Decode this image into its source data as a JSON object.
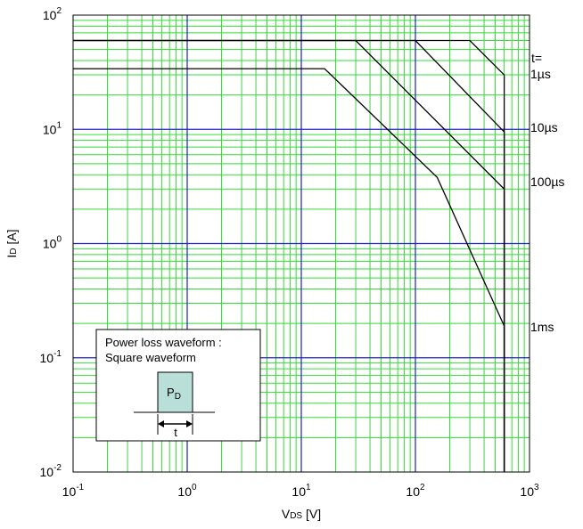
{
  "chart_data": {
    "type": "line",
    "title": "",
    "x_scale": "log",
    "y_scale": "log",
    "xlim": [
      0.1,
      1000
    ],
    "ylim": [
      0.01,
      100
    ],
    "x_ticks": [
      {
        "base": "10",
        "exp": "-1"
      },
      {
        "base": "10",
        "exp": "0"
      },
      {
        "base": "10",
        "exp": "1"
      },
      {
        "base": "10",
        "exp": "2"
      },
      {
        "base": "10",
        "exp": "3"
      }
    ],
    "y_ticks": [
      {
        "base": "10",
        "exp": "-2"
      },
      {
        "base": "10",
        "exp": "-1"
      },
      {
        "base": "10",
        "exp": "0"
      },
      {
        "base": "10",
        "exp": "1"
      },
      {
        "base": "10",
        "exp": "2"
      }
    ],
    "xlabel": {
      "main": "V",
      "sub": "DS",
      "unit": " [V]"
    },
    "ylabel": {
      "main": "I",
      "sub": "D",
      "unit": " [A]"
    },
    "grid": true,
    "series_header": "t=",
    "series": [
      {
        "name": "1µs",
        "points": [
          [
            0.1,
            60
          ],
          [
            300,
            60
          ],
          [
            600,
            30
          ],
          [
            600,
            0.01
          ]
        ]
      },
      {
        "name": "10µs",
        "points": [
          [
            0.1,
            60
          ],
          [
            100,
            60
          ],
          [
            600,
            9.5
          ],
          [
            600,
            0.01
          ]
        ]
      },
      {
        "name": "100µs",
        "points": [
          [
            0.1,
            60
          ],
          [
            30,
            60
          ],
          [
            600,
            3
          ],
          [
            600,
            0.01
          ]
        ]
      },
      {
        "name": "1ms",
        "points": [
          [
            0.1,
            34
          ],
          [
            16,
            34
          ],
          [
            155,
            3.8
          ],
          [
            600,
            0.19
          ],
          [
            600,
            0.01
          ]
        ]
      }
    ],
    "inset": {
      "line1": "Power loss waveform :",
      "line2": "Square waveform",
      "pulse_label_main": "P",
      "pulse_label_sub": "D",
      "width_label": "t"
    },
    "colors": {
      "major_grid": "#1d1dcc",
      "minor_grid": "#33dd33",
      "curve": "#000000",
      "pulse_fill": "#b8e0d8"
    }
  }
}
